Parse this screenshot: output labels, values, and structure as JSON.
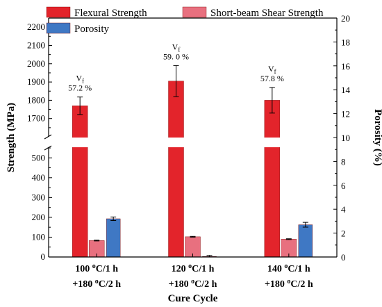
{
  "chart_data": {
    "type": "bar",
    "xlabel": "Cure Cycle",
    "ylabel_left": "Strength (MPa)",
    "ylabel_right": "Porosity (%)",
    "categories": [
      {
        "line1": "100 °C/1 h",
        "line2": "+180 °C/2 h"
      },
      {
        "line1": "120 °C/1 h",
        "line2": "+180 °C/2 h"
      },
      {
        "line1": "140 °C/1 h",
        "line2": "+180 °C/2 h"
      }
    ],
    "left_axis": {
      "lower_range": [
        0,
        550
      ],
      "upper_range": [
        1600,
        2250
      ],
      "lower_ticks": [
        0,
        100,
        200,
        300,
        400,
        500
      ],
      "upper_ticks": [
        1700,
        1800,
        1900,
        2000,
        2100,
        2200
      ],
      "broken": true
    },
    "right_axis": {
      "range": [
        0,
        20
      ],
      "ticks": [
        0,
        2,
        4,
        6,
        8,
        10,
        12,
        14,
        16,
        18,
        20
      ]
    },
    "series": [
      {
        "name": "Flexural Strength",
        "axis": "left",
        "color": "#e3242b",
        "values": [
          1770,
          1905,
          1800
        ],
        "errors": [
          48,
          85,
          70
        ]
      },
      {
        "name": "Short-beam Shear Strength",
        "axis": "left",
        "color": "#e8707f",
        "values": [
          83,
          102,
          90
        ],
        "errors": [
          2,
          2,
          2
        ]
      },
      {
        "name": "Porosity",
        "axis": "right",
        "color": "#3f78c4",
        "values": [
          3.2,
          0.05,
          2.7
        ],
        "errors": [
          0.15,
          0.08,
          0.2
        ]
      }
    ],
    "annotations": [
      {
        "label": "V",
        "sub": "f",
        "value": "57.2 %"
      },
      {
        "label": "V",
        "sub": "f",
        "value": "59. 0 %"
      },
      {
        "label": "V",
        "sub": "f",
        "value": "57.8 %"
      }
    ],
    "legend": "top-left"
  }
}
